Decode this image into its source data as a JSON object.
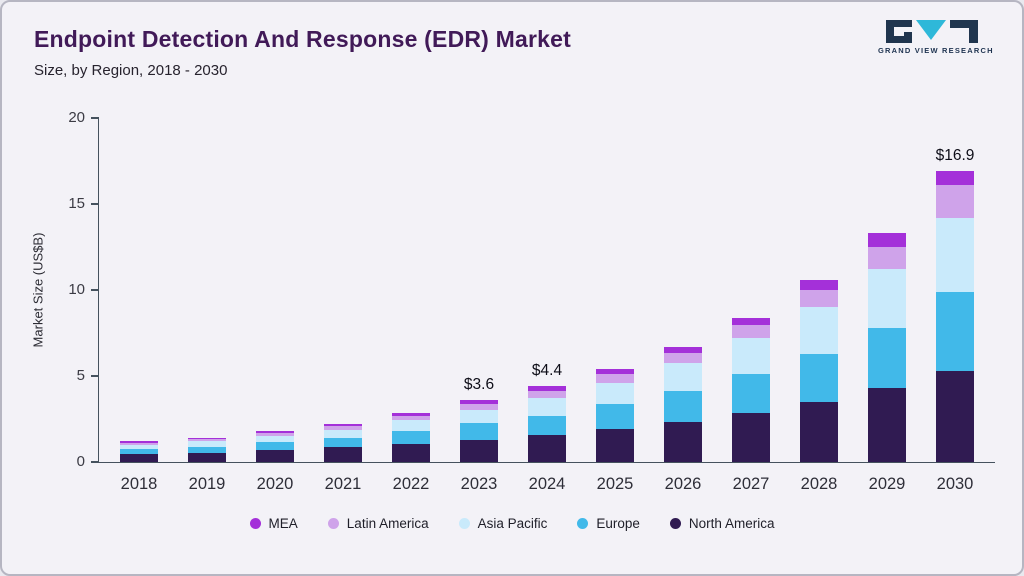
{
  "header": {
    "title": "Endpoint Detection And Response (EDR) Market",
    "subtitle": "Size, by Region, 2018 - 2030",
    "logo_text": "GRAND VIEW RESEARCH"
  },
  "chart_data": {
    "type": "bar",
    "stacked": true,
    "title": "Endpoint Detection And Response (EDR) Market Size, by Region, 2018 - 2030",
    "ylabel": "Market Size (US$B)",
    "ylim": [
      0,
      20
    ],
    "yticks": [
      0,
      5,
      10,
      15,
      20
    ],
    "grid": false,
    "legend_position": "bottom",
    "categories": [
      "2018",
      "2019",
      "2020",
      "2021",
      "2022",
      "2023",
      "2024",
      "2025",
      "2026",
      "2027",
      "2028",
      "2029",
      "2030"
    ],
    "series": [
      {
        "name": "North America",
        "color": "#301b52",
        "values": [
          0.45,
          0.55,
          0.7,
          0.85,
          1.05,
          1.3,
          1.55,
          1.9,
          2.35,
          2.85,
          3.5,
          4.3,
          5.3
        ]
      },
      {
        "name": "Europe",
        "color": "#41b9e9",
        "values": [
          0.3,
          0.35,
          0.45,
          0.55,
          0.75,
          0.95,
          1.15,
          1.45,
          1.8,
          2.25,
          2.8,
          3.5,
          4.6
        ]
      },
      {
        "name": "Asia Pacific",
        "color": "#c9eafb",
        "values": [
          0.25,
          0.3,
          0.38,
          0.47,
          0.62,
          0.8,
          1.0,
          1.25,
          1.6,
          2.1,
          2.7,
          3.4,
          4.3
        ]
      },
      {
        "name": "Latin America",
        "color": "#cfa3ea",
        "values": [
          0.12,
          0.13,
          0.17,
          0.21,
          0.27,
          0.35,
          0.45,
          0.5,
          0.6,
          0.75,
          1.0,
          1.3,
          1.9
        ]
      },
      {
        "name": "MEA",
        "color": "#a430d9",
        "values": [
          0.08,
          0.09,
          0.1,
          0.12,
          0.16,
          0.2,
          0.25,
          0.3,
          0.35,
          0.45,
          0.6,
          0.8,
          0.8
        ]
      }
    ],
    "totals": [
      1.2,
      1.42,
      1.8,
      2.2,
      2.85,
      3.6,
      4.4,
      5.4,
      6.7,
      8.4,
      10.6,
      13.3,
      16.9
    ],
    "annotations": {
      "2023": "$3.6",
      "2024": "$4.4",
      "2030": "$16.9"
    },
    "legend": [
      "MEA",
      "Latin America",
      "Asia Pacific",
      "Europe",
      "North America"
    ]
  }
}
